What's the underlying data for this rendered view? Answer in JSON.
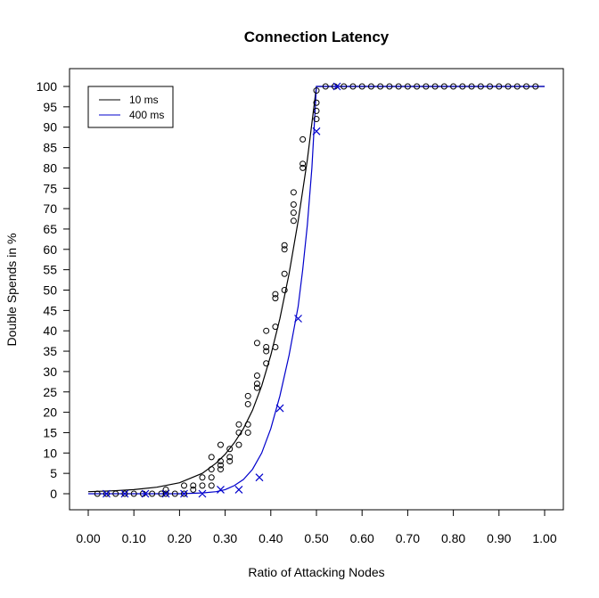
{
  "chart_data": {
    "type": "scatter",
    "title": "Connection Latency",
    "xlabel": "Ratio of Attacking Nodes",
    "ylabel": "Double Spends in %",
    "xlim": [
      0,
      1
    ],
    "ylim": [
      0,
      100
    ],
    "x_ticks": [
      "0.00",
      "0.10",
      "0.20",
      "0.30",
      "0.40",
      "0.50",
      "0.60",
      "0.70",
      "0.80",
      "0.90",
      "1.00"
    ],
    "y_ticks": [
      "0",
      "5",
      "10",
      "15",
      "20",
      "25",
      "30",
      "35",
      "40",
      "45",
      "50",
      "55",
      "60",
      "65",
      "70",
      "75",
      "80",
      "85",
      "90",
      "95",
      "100"
    ],
    "grid": false,
    "legend_position": "top-left",
    "series": [
      {
        "name": "10 ms",
        "color": "#000000",
        "marker": "circle",
        "points": [
          [
            0.02,
            0
          ],
          [
            0.04,
            0
          ],
          [
            0.06,
            0
          ],
          [
            0.08,
            0
          ],
          [
            0.1,
            0
          ],
          [
            0.12,
            0
          ],
          [
            0.14,
            0
          ],
          [
            0.16,
            0
          ],
          [
            0.17,
            0
          ],
          [
            0.17,
            1
          ],
          [
            0.19,
            0
          ],
          [
            0.21,
            0
          ],
          [
            0.21,
            2
          ],
          [
            0.23,
            1
          ],
          [
            0.23,
            2
          ],
          [
            0.25,
            2
          ],
          [
            0.25,
            4
          ],
          [
            0.27,
            2
          ],
          [
            0.27,
            4
          ],
          [
            0.27,
            6
          ],
          [
            0.27,
            9
          ],
          [
            0.29,
            6
          ],
          [
            0.29,
            7
          ],
          [
            0.29,
            8
          ],
          [
            0.29,
            12
          ],
          [
            0.31,
            8
          ],
          [
            0.31,
            9
          ],
          [
            0.31,
            11
          ],
          [
            0.33,
            12
          ],
          [
            0.33,
            15
          ],
          [
            0.33,
            17
          ],
          [
            0.35,
            15
          ],
          [
            0.35,
            17
          ],
          [
            0.35,
            22
          ],
          [
            0.35,
            24
          ],
          [
            0.37,
            26
          ],
          [
            0.37,
            27
          ],
          [
            0.37,
            29
          ],
          [
            0.37,
            37
          ],
          [
            0.39,
            32
          ],
          [
            0.39,
            35
          ],
          [
            0.39,
            36
          ],
          [
            0.39,
            40
          ],
          [
            0.41,
            36
          ],
          [
            0.41,
            41
          ],
          [
            0.41,
            48
          ],
          [
            0.41,
            49
          ],
          [
            0.43,
            50
          ],
          [
            0.43,
            54
          ],
          [
            0.43,
            60
          ],
          [
            0.43,
            61
          ],
          [
            0.45,
            67
          ],
          [
            0.45,
            69
          ],
          [
            0.45,
            71
          ],
          [
            0.45,
            74
          ],
          [
            0.47,
            80
          ],
          [
            0.47,
            81
          ],
          [
            0.47,
            87
          ],
          [
            0.5,
            92
          ],
          [
            0.5,
            94
          ],
          [
            0.5,
            96
          ],
          [
            0.5,
            99
          ],
          [
            0.52,
            100
          ],
          [
            0.54,
            100
          ],
          [
            0.56,
            100
          ],
          [
            0.58,
            100
          ],
          [
            0.6,
            100
          ],
          [
            0.62,
            100
          ],
          [
            0.64,
            100
          ],
          [
            0.66,
            100
          ],
          [
            0.68,
            100
          ],
          [
            0.7,
            100
          ],
          [
            0.72,
            100
          ],
          [
            0.74,
            100
          ],
          [
            0.76,
            100
          ],
          [
            0.78,
            100
          ],
          [
            0.8,
            100
          ],
          [
            0.82,
            100
          ],
          [
            0.84,
            100
          ],
          [
            0.86,
            100
          ],
          [
            0.88,
            100
          ],
          [
            0.9,
            100
          ],
          [
            0.92,
            100
          ],
          [
            0.94,
            100
          ],
          [
            0.96,
            100
          ],
          [
            0.98,
            100
          ]
        ],
        "curve": [
          [
            0.0,
            0.5
          ],
          [
            0.05,
            0.7
          ],
          [
            0.1,
            1.0
          ],
          [
            0.15,
            1.6
          ],
          [
            0.2,
            2.7
          ],
          [
            0.25,
            5.0
          ],
          [
            0.28,
            7.5
          ],
          [
            0.3,
            9.7
          ],
          [
            0.32,
            12.5
          ],
          [
            0.34,
            16.0
          ],
          [
            0.36,
            20.5
          ],
          [
            0.38,
            26.5
          ],
          [
            0.4,
            34.0
          ],
          [
            0.42,
            43.0
          ],
          [
            0.44,
            54.0
          ],
          [
            0.46,
            67.0
          ],
          [
            0.48,
            82.0
          ],
          [
            0.5,
            100
          ],
          [
            1.0,
            100
          ]
        ]
      },
      {
        "name": "400 ms",
        "color": "#0000cc",
        "marker": "x",
        "points": [
          [
            0.04,
            0
          ],
          [
            0.08,
            0
          ],
          [
            0.125,
            0
          ],
          [
            0.17,
            0
          ],
          [
            0.21,
            0
          ],
          [
            0.25,
            0
          ],
          [
            0.29,
            1
          ],
          [
            0.33,
            1
          ],
          [
            0.375,
            4
          ],
          [
            0.42,
            21
          ],
          [
            0.46,
            43
          ],
          [
            0.5,
            89
          ],
          [
            0.545,
            100
          ]
        ],
        "curve": [
          [
            0.0,
            0
          ],
          [
            0.1,
            0
          ],
          [
            0.2,
            0
          ],
          [
            0.25,
            0.2
          ],
          [
            0.28,
            0.5
          ],
          [
            0.3,
            1.0
          ],
          [
            0.32,
            2.0
          ],
          [
            0.34,
            3.5
          ],
          [
            0.36,
            6.0
          ],
          [
            0.38,
            10.0
          ],
          [
            0.4,
            16.0
          ],
          [
            0.42,
            24.0
          ],
          [
            0.44,
            34.0
          ],
          [
            0.46,
            46.0
          ],
          [
            0.47,
            55.0
          ],
          [
            0.48,
            66.0
          ],
          [
            0.49,
            80.0
          ],
          [
            0.5,
            100
          ],
          [
            1.0,
            100
          ]
        ]
      }
    ]
  }
}
